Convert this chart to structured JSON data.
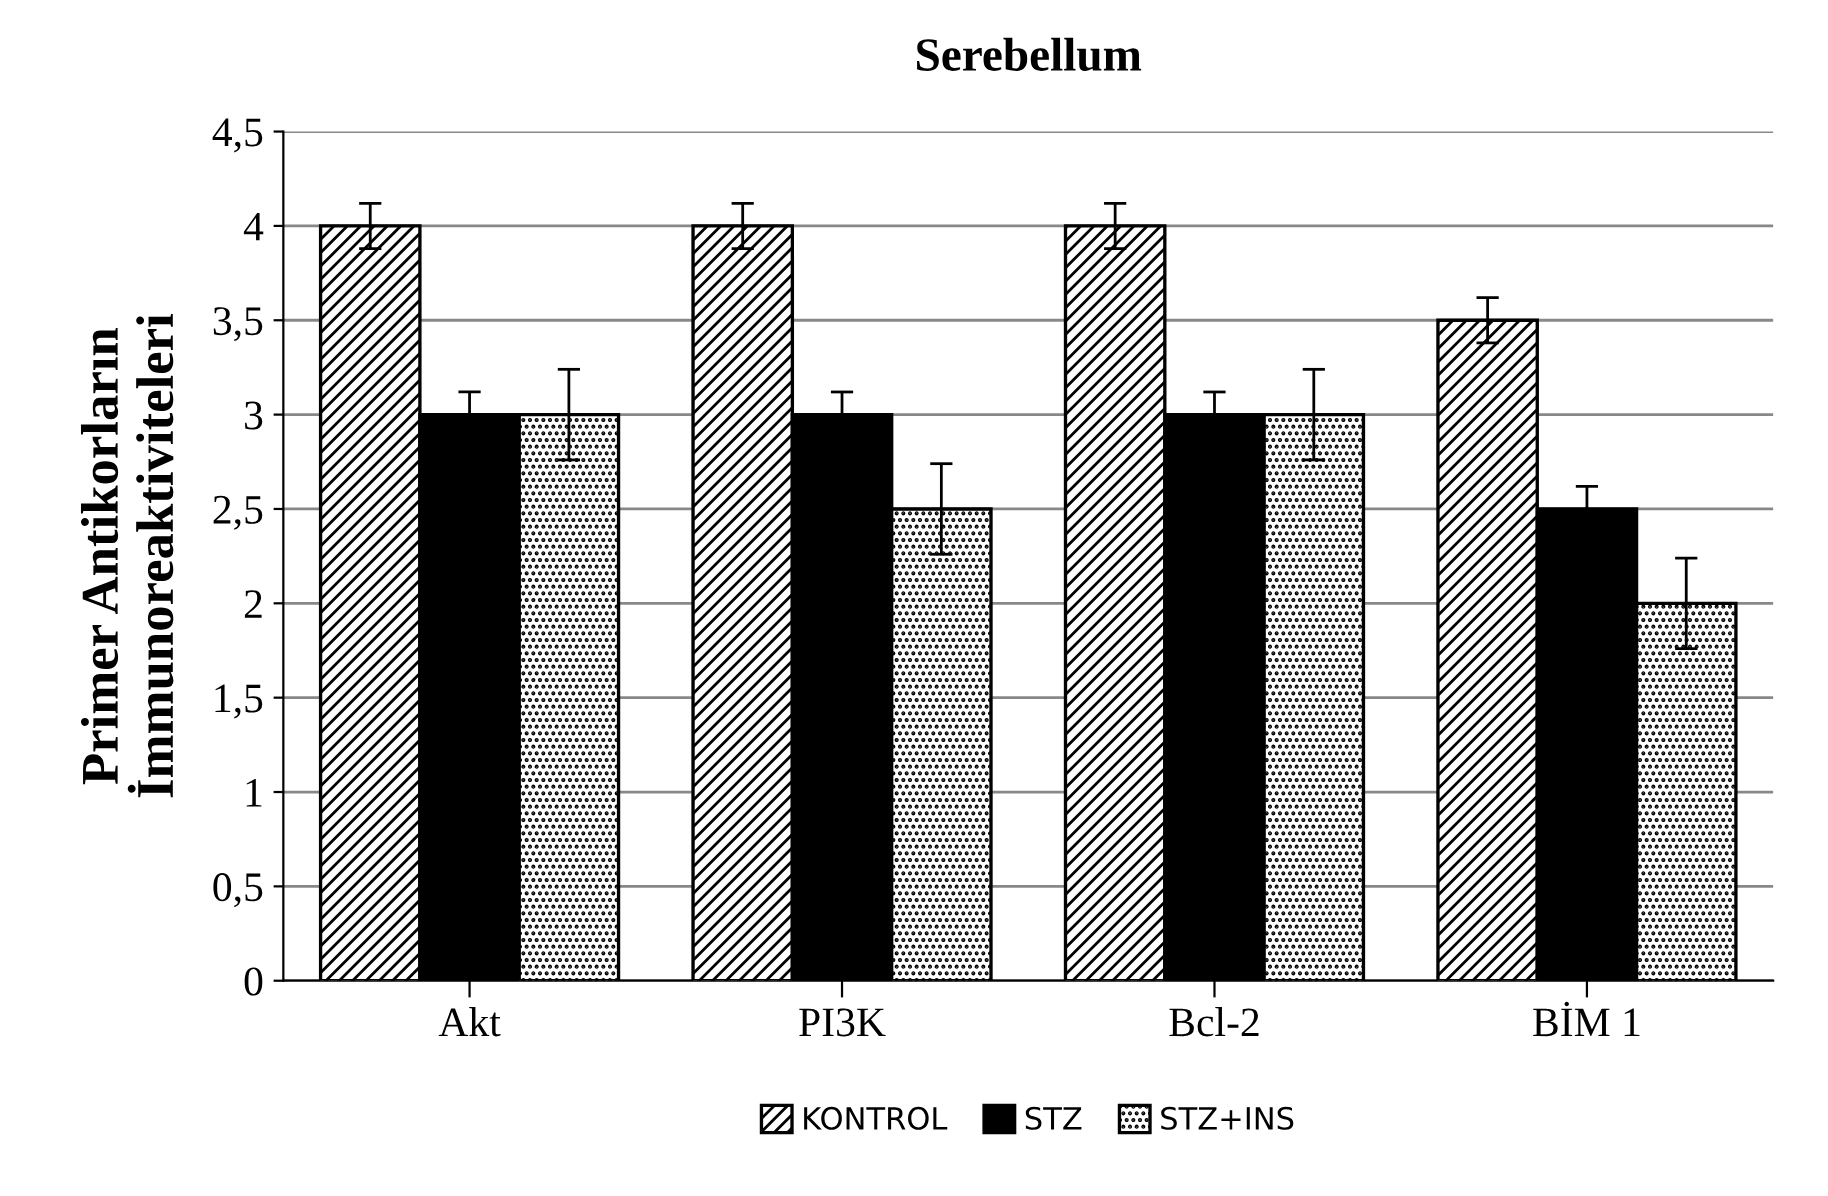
{
  "chart_data": {
    "type": "bar",
    "title": "Serebellum",
    "ylabel": "Primer Antikorların\nİmmunoreaktiviteleri",
    "categories": [
      "Akt",
      "PI3K",
      "Bcl-2",
      "BİM 1"
    ],
    "series": [
      {
        "name": "KONTROL",
        "color": "#000000",
        "values": [
          4,
          4,
          4,
          3.5
        ],
        "errors": [
          0.12,
          0.12,
          0.12,
          0.12
        ]
      },
      {
        "name": "STZ",
        "color": "#000000",
        "values": [
          3,
          3,
          3,
          2.5
        ],
        "errors": [
          0.12,
          0.12,
          0.12,
          0.12
        ]
      },
      {
        "name": "STZ+INS",
        "color": "#000000",
        "values": [
          3,
          2.5,
          3,
          2
        ],
        "errors": [
          0.24,
          0.24,
          0.24,
          0.24
        ]
      }
    ],
    "ylim": [
      0,
      4.5
    ],
    "yticks": [
      0,
      {
        "value": 0.5,
        "label": "0,5"
      },
      1,
      {
        "value": 1.5,
        "label": "1,5"
      },
      2,
      {
        "value": 2.5,
        "label": "2,5"
      },
      3,
      {
        "value": 3.5,
        "label": "3,5"
      },
      4,
      {
        "value": 4.5,
        "label": "4,5"
      }
    ],
    "grid": "y",
    "legend": "bottom"
  }
}
